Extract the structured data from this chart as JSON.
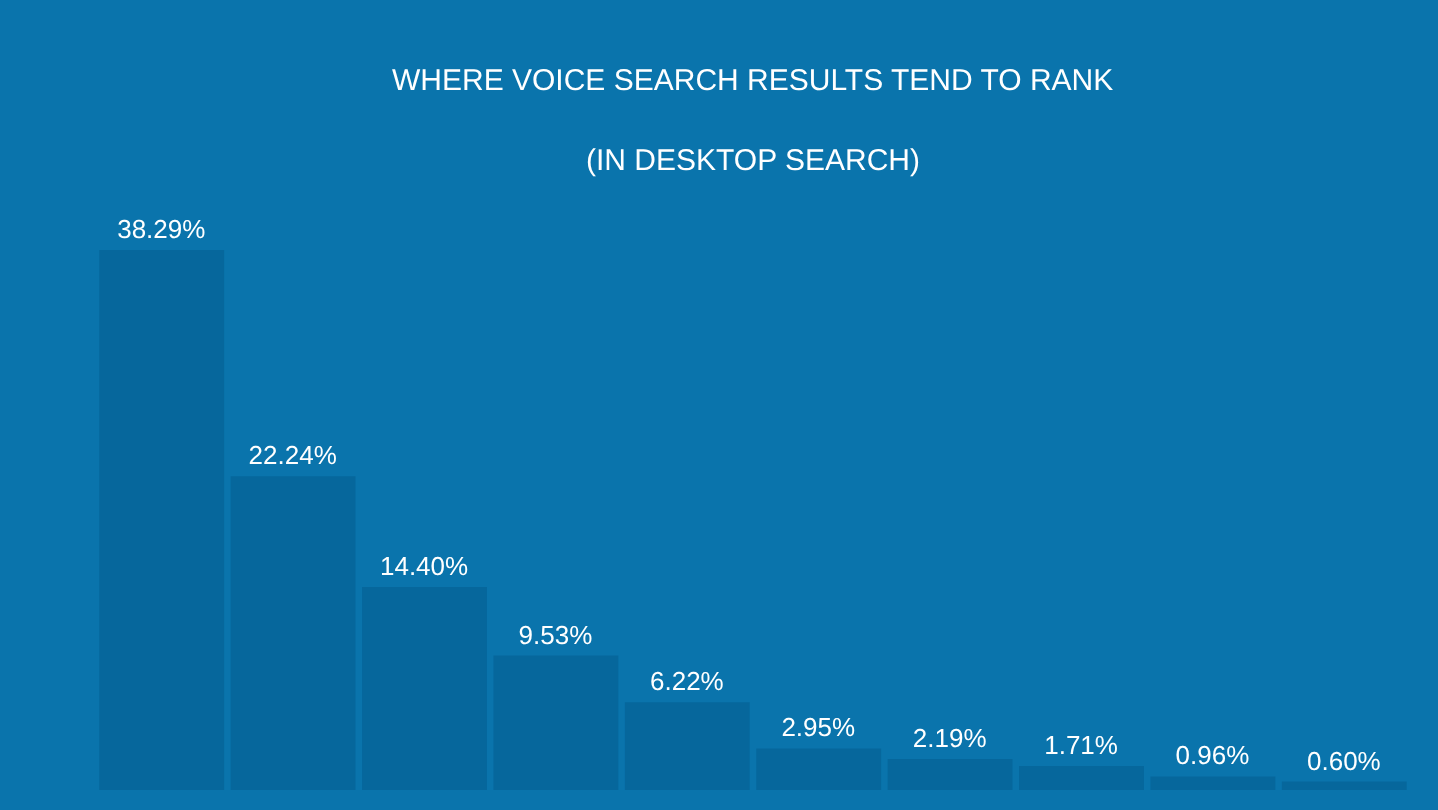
{
  "chart_data": {
    "type": "bar",
    "title": "WHERE VOICE SEARCH RESULTS TEND TO RANK",
    "subtitle": "(IN DESKTOP SEARCH)",
    "categories": [
      null,
      null,
      null,
      null,
      null,
      null,
      null,
      null,
      null,
      null
    ],
    "values": [
      38.29,
      22.24,
      14.4,
      9.53,
      6.22,
      2.95,
      2.19,
      1.71,
      0.96,
      0.6
    ],
    "value_labels": [
      "38.29%",
      "22.24%",
      "14.40%",
      "9.53%",
      "6.22%",
      "2.95%",
      "2.19%",
      "1.71%",
      "0.96%",
      "0.60%"
    ],
    "color": "#06679c"
  }
}
